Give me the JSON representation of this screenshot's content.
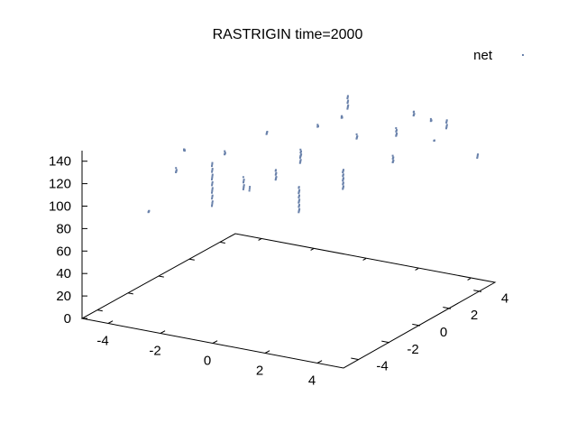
{
  "chart_data": {
    "type": "scatter",
    "title": "RASTRIGIN time=2000",
    "xlabel": "",
    "ylabel": "",
    "zlabel": "",
    "xlim": [
      -5,
      5
    ],
    "ylim": [
      -5,
      5
    ],
    "zlim": [
      0,
      150
    ],
    "x_ticks": [
      "-4",
      "-2",
      "0",
      "2",
      "4"
    ],
    "y_ticks": [
      "-4",
      "-2",
      "0",
      "2",
      "4"
    ],
    "z_ticks": [
      "0",
      "20",
      "40",
      "60",
      "80",
      "100",
      "120",
      "140"
    ],
    "grid": false,
    "legend_position": "top-right",
    "series": [
      {
        "name": "net",
        "color": "#6a82ab",
        "clusters": [
          {
            "x": -4.5,
            "y": -1.5,
            "z_from": 70,
            "z_to": 72,
            "count": 4
          },
          {
            "x": -3.8,
            "y": -0.9,
            "z_from": 104,
            "z_to": 108,
            "count": 5
          },
          {
            "x": -3.9,
            "y": -0.2,
            "z_from": 118,
            "z_to": 119,
            "count": 10
          },
          {
            "x": -2.6,
            "y": -0.6,
            "z_from": 77,
            "z_to": 116,
            "count": 24
          },
          {
            "x": -2.7,
            "y": 0.4,
            "z_from": 115,
            "z_to": 118,
            "count": 5
          },
          {
            "x": -2.1,
            "y": 0.6,
            "z_from": 85,
            "z_to": 96,
            "count": 8
          },
          {
            "x": -1.4,
            "y": -0.2,
            "z_from": 93,
            "z_to": 97,
            "count": 3
          },
          {
            "x": -1.8,
            "y": 1.6,
            "z_from": 128,
            "z_to": 131,
            "count": 4
          },
          {
            "x": -1.1,
            "y": 1.0,
            "z_from": 95,
            "z_to": 104,
            "count": 9
          },
          {
            "x": -0.5,
            "y": 1.6,
            "z_from": 114,
            "z_to": 120,
            "count": 8
          },
          {
            "x": -0.4,
            "y": 1.4,
            "z_from": 110,
            "z_to": 116,
            "count": 6
          },
          {
            "x": -0.1,
            "y": 0.8,
            "z_from": 72,
            "z_to": 95,
            "count": 20
          },
          {
            "x": -0.2,
            "y": 2.2,
            "z_from": 137,
            "z_to": 139,
            "count": 5
          },
          {
            "x": 0.6,
            "y": 2.4,
            "z_from": 147,
            "z_to": 149,
            "count": 6
          },
          {
            "x": 1.0,
            "y": 2.7,
            "z_from": 128,
            "z_to": 132,
            "count": 5
          },
          {
            "x": 0.3,
            "y": 3.3,
            "z_from": 147,
            "z_to": 159,
            "count": 10
          },
          {
            "x": 1.0,
            "y": 1.8,
            "z_from": 90,
            "z_to": 108,
            "count": 18
          },
          {
            "x": 2.5,
            "y": 2.5,
            "z_from": 115,
            "z_to": 121,
            "count": 8
          },
          {
            "x": 2.1,
            "y": 3.4,
            "z_from": 130,
            "z_to": 137,
            "count": 8
          },
          {
            "x": 2.3,
            "y": 4.2,
            "z_from": 143,
            "z_to": 147,
            "count": 6
          },
          {
            "x": 2.9,
            "y": 4.3,
            "z_from": 140,
            "z_to": 142,
            "count": 5
          },
          {
            "x": 3.2,
            "y": 4.0,
            "z_from": 126,
            "z_to": 127,
            "count": 3
          },
          {
            "x": 3.2,
            "y": 4.8,
            "z_from": 131,
            "z_to": 139,
            "count": 7
          },
          {
            "x": 4.5,
            "y": 4.6,
            "z_from": 112,
            "z_to": 116,
            "count": 4
          }
        ]
      }
    ]
  }
}
